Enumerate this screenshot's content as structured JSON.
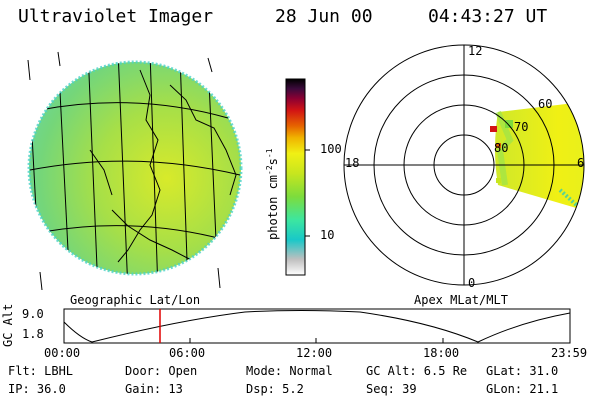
{
  "header": {
    "title": "Ultraviolet Imager",
    "date": "28 Jun 00",
    "time": "04:43:27 UT"
  },
  "colorbar": {
    "unit_label": "photon cm-2s-1",
    "unit_base": "photon cm",
    "unit_exp1": "-2",
    "unit_mid": "s",
    "unit_exp2": "-1",
    "tick_high": "100",
    "tick_low": "10",
    "colors": [
      "#ffffff",
      "#bfbfbf",
      "#19c8c8",
      "#3ce6a0",
      "#7ddc3c",
      "#c8e61e",
      "#f0f014",
      "#f0b400",
      "#e66400",
      "#d21414",
      "#8c0032",
      "#3c0a3c",
      "#000000"
    ]
  },
  "left_panel": {
    "caption": "Geographic Lat/Lon"
  },
  "right_panel": {
    "caption": "Apex MLat/MLT",
    "mlt_labels": {
      "top": "12",
      "left": "18",
      "right": "6",
      "bottom": "0"
    },
    "lat_labels": [
      "60",
      "70",
      "80"
    ]
  },
  "altitude_plot": {
    "ylabel": "GC Alt",
    "ytick_top": "9.0",
    "ytick_bottom": "1.8",
    "xticks": [
      "00:00",
      "06:00",
      "12:00",
      "18:00",
      "23:59"
    ],
    "marker_time": "04:43"
  },
  "footer": {
    "flt": "Flt: LBHL",
    "ip": "IP: 36.0",
    "door": "Door: Open",
    "gain": "Gain: 13",
    "mode": "Mode: Normal",
    "dsp": "Dsp:    5.2",
    "gc_alt": "GC Alt: 6.5 Re",
    "seq": "Seq: 39",
    "glat": "GLat:  31.0",
    "glon": "GLon:  21.1"
  }
}
